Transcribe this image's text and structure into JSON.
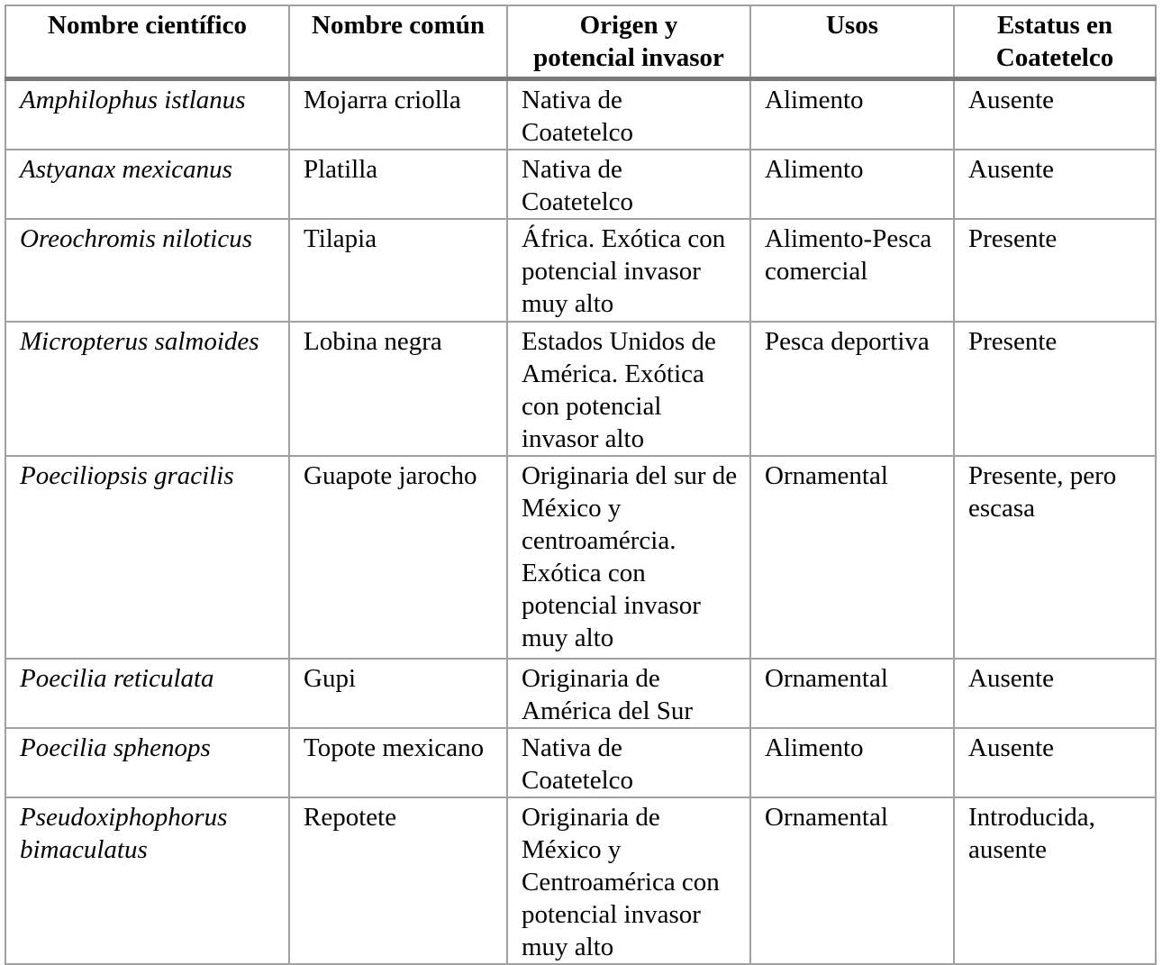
{
  "table": {
    "headers": [
      "Nombre científico",
      "Nombre común",
      "Origen y potencial invasor",
      "Usos",
      "Estatus en Coatetelco"
    ],
    "header_lines": {
      "col3_line1": "Origen y",
      "col3_line2": "potencial invasor",
      "col5_line1": "Estatus en",
      "col5_line2": "Coatetelco"
    },
    "rows": [
      {
        "scientific": "Amphilophus istlanus",
        "common": "Mojarra criolla",
        "origin": "Nativa de Coatetelco",
        "uses": "Alimento",
        "status": "Ausente"
      },
      {
        "scientific": "Astyanax mexicanus",
        "common": "Platilla",
        "origin": "Nativa de Coatetelco",
        "uses": "Alimento",
        "status": "Ausente"
      },
      {
        "scientific": "Oreochromis niloticus",
        "common": "Tilapia",
        "origin": "África. Exótica con potencial invasor muy alto",
        "uses": "Alimento-Pesca comercial",
        "status": "Presente"
      },
      {
        "scientific": "Micropterus salmoides",
        "common": "Lobina negra",
        "origin": "Estados Unidos de América. Exótica con potencial invasor alto",
        "uses": "Pesca deportiva",
        "status": "Presente"
      },
      {
        "scientific": "Poeciliopsis gracilis",
        "common": "Guapote jarocho",
        "origin": "Originaria del sur de México y centroamércia. Exótica con potencial invasor muy alto",
        "uses": "Ornamental",
        "status": "Presente, pero escasa"
      },
      {
        "scientific": "Poecilia reticulata",
        "common": "Gupi",
        "origin": "Originaria de América del Sur",
        "uses": "Ornamental",
        "status": "Ausente"
      },
      {
        "scientific": "Poecilia sphenops",
        "common": "Topote mexicano",
        "origin": "Nativa de Coatetelco",
        "uses": "Alimento",
        "status": "Ausente"
      },
      {
        "scientific": "Pseudoxiphophorus bimaculatus",
        "common": "Repotete",
        "origin": "Originaria de México y Centroamérica con potencial invasor muy alto",
        "uses": "Ornamental",
        "status": "Introducida, ausente"
      }
    ]
  }
}
